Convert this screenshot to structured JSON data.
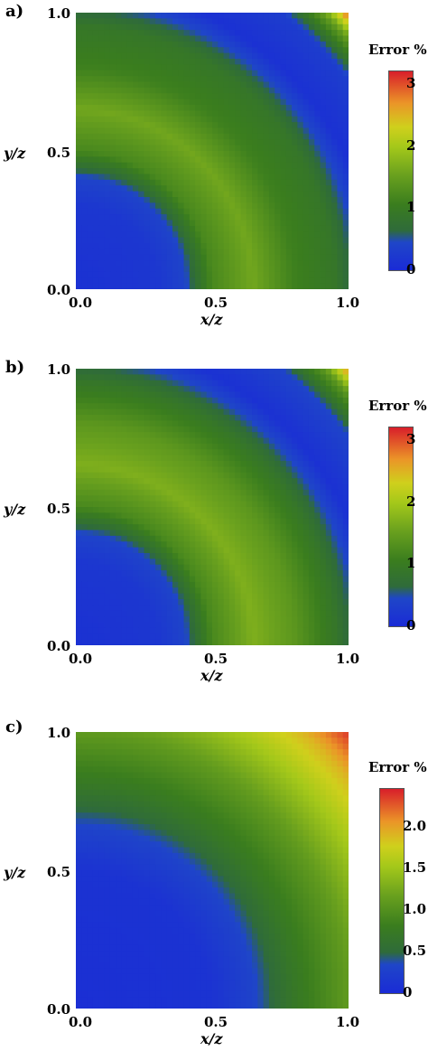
{
  "chart_data": [
    {
      "type": "heatmap",
      "panel_label": "a)",
      "xlabel": "x/z",
      "ylabel": "y/z",
      "xlim": [
        0.0,
        1.0
      ],
      "ylim": [
        0.0,
        1.0
      ],
      "x_ticks": [
        "0.0",
        "0.5",
        "1.0"
      ],
      "y_ticks": [
        "0.0",
        "0.5",
        "1.0"
      ],
      "colorbar": {
        "title": "Error %",
        "range": [
          0,
          3.2
        ],
        "ticks": [
          "0",
          "1",
          "2",
          "3"
        ],
        "tick_values": [
          0,
          1,
          2,
          3
        ]
      },
      "field": {
        "pattern": "radial",
        "radius_value": [
          [
            0.0,
            0.1
          ],
          [
            0.3,
            0.2
          ],
          [
            0.4,
            0.4
          ],
          [
            0.5,
            1.2
          ],
          [
            0.65,
            1.6
          ],
          [
            0.8,
            1.1
          ],
          [
            0.95,
            0.9
          ],
          [
            1.1,
            0.1
          ],
          [
            1.25,
            0.3
          ],
          [
            1.35,
            1.5
          ],
          [
            1.42,
            3.1
          ]
        ]
      }
    },
    {
      "type": "heatmap",
      "panel_label": "b)",
      "xlabel": "x/z",
      "ylabel": "y/z",
      "xlim": [
        0.0,
        1.0
      ],
      "ylim": [
        0.0,
        1.0
      ],
      "x_ticks": [
        "0.0",
        "0.5",
        "1.0"
      ],
      "y_ticks": [
        "0.0",
        "0.5",
        "1.0"
      ],
      "colorbar": {
        "title": "Error %",
        "range": [
          0,
          3.2
        ],
        "ticks": [
          "0",
          "1",
          "2",
          "3"
        ],
        "tick_values": [
          0,
          1,
          2,
          3
        ]
      },
      "field": {
        "pattern": "radial",
        "radius_value": [
          [
            0.0,
            0.1
          ],
          [
            0.3,
            0.2
          ],
          [
            0.4,
            0.4
          ],
          [
            0.5,
            1.2
          ],
          [
            0.65,
            1.7
          ],
          [
            0.8,
            1.4
          ],
          [
            0.95,
            0.9
          ],
          [
            1.1,
            0.1
          ],
          [
            1.25,
            0.4
          ],
          [
            1.35,
            1.4
          ],
          [
            1.42,
            2.9
          ]
        ]
      }
    },
    {
      "type": "heatmap",
      "panel_label": "c)",
      "xlabel": "x/z",
      "ylabel": "y/z",
      "xlim": [
        0.0,
        1.0
      ],
      "ylim": [
        0.0,
        1.0
      ],
      "x_ticks": [
        "0.0",
        "0.5",
        "1.0"
      ],
      "y_ticks": [
        "0.0",
        "0.5",
        "1.0"
      ],
      "colorbar": {
        "title": "Error %",
        "range": [
          0,
          2.45
        ],
        "ticks": [
          "0",
          "0.5",
          "1.0",
          "1.5",
          "2.0"
        ],
        "tick_values": [
          0,
          0.5,
          1.0,
          1.5,
          2.0
        ]
      },
      "field": {
        "pattern": "radial",
        "radius_value": [
          [
            0.0,
            0.05
          ],
          [
            0.5,
            0.1
          ],
          [
            0.65,
            0.3
          ],
          [
            0.8,
            0.7
          ],
          [
            1.0,
            1.1
          ],
          [
            1.15,
            1.5
          ],
          [
            1.3,
            1.9
          ],
          [
            1.42,
            2.4
          ]
        ]
      }
    }
  ],
  "colormap": {
    "stops": [
      [
        0.0,
        "#1a2bd6"
      ],
      [
        0.14,
        "#1f46c8"
      ],
      [
        0.2,
        "#2f6b3a"
      ],
      [
        0.33,
        "#3a7d1e"
      ],
      [
        0.48,
        "#6aa11e"
      ],
      [
        0.62,
        "#a4c81a"
      ],
      [
        0.72,
        "#cfd01c"
      ],
      [
        0.84,
        "#eb9528"
      ],
      [
        1.0,
        "#d81e2a"
      ]
    ]
  }
}
